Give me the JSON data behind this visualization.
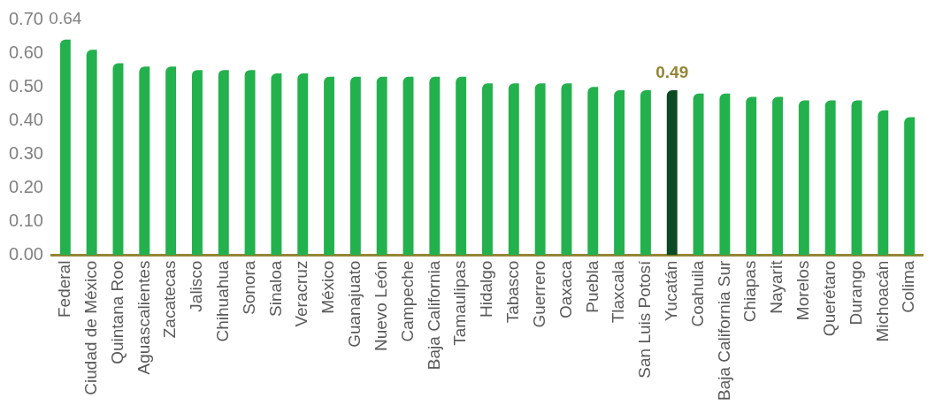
{
  "chart_data": {
    "type": "bar",
    "categories": [
      "Federal",
      "Ciudad de México",
      "Quintana Roo",
      "Aguascalientes",
      "Zacatecas",
      "Jalisco",
      "Chihuahua",
      "Sonora",
      "Sinaloa",
      "Veracruz",
      "México",
      "Guanajuato",
      "Nuevo León",
      "Campeche",
      "Baja California",
      "Tamaulipas",
      "Hidalgo",
      "Tabasco",
      "Guerrero",
      "Oaxaca",
      "Puebla",
      "Tlaxcala",
      "San Luis Potosí",
      "Yucatán",
      "Coahuila",
      "Baja California Sur",
      "Chiapas",
      "Nayarit",
      "Morelos",
      "Querétaro",
      "Durango",
      "Michoacán",
      "Colima"
    ],
    "values": [
      0.64,
      0.61,
      0.57,
      0.56,
      0.56,
      0.55,
      0.55,
      0.55,
      0.54,
      0.54,
      0.53,
      0.53,
      0.53,
      0.53,
      0.53,
      0.53,
      0.51,
      0.51,
      0.51,
      0.51,
      0.5,
      0.49,
      0.49,
      0.49,
      0.48,
      0.48,
      0.47,
      0.47,
      0.46,
      0.46,
      0.46,
      0.43,
      0.41
    ],
    "colors": [
      "#23b14d",
      "#23b14d",
      "#23b14d",
      "#23b14d",
      "#23b14d",
      "#23b14d",
      "#23b14d",
      "#23b14d",
      "#23b14d",
      "#23b14d",
      "#23b14d",
      "#23b14d",
      "#23b14d",
      "#23b14d",
      "#23b14d",
      "#23b14d",
      "#23b14d",
      "#23b14d",
      "#23b14d",
      "#23b14d",
      "#23b14d",
      "#23b14d",
      "#23b14d",
      "#0b4a22",
      "#23b14d",
      "#23b14d",
      "#23b14d",
      "#23b14d",
      "#23b14d",
      "#23b14d",
      "#23b14d",
      "#23b14d",
      "#23b14d"
    ],
    "value_labels": [
      "0.64",
      null,
      null,
      null,
      null,
      null,
      null,
      null,
      null,
      null,
      null,
      null,
      null,
      null,
      null,
      null,
      null,
      null,
      null,
      null,
      null,
      null,
      null,
      "0.49",
      null,
      null,
      null,
      null,
      null,
      null,
      null,
      null,
      null
    ],
    "ylim": [
      0,
      0.7
    ],
    "yticks": [
      {
        "value": 0,
        "label": "0.00"
      },
      {
        "value": 0.1,
        "label": "0.10"
      },
      {
        "value": 0.2,
        "label": "0.20"
      },
      {
        "value": 0.3,
        "label": "0.30"
      },
      {
        "value": 0.4,
        "label": "0.40"
      },
      {
        "value": 0.5,
        "label": "0.50"
      },
      {
        "value": 0.6,
        "label": "0.60"
      },
      {
        "value": 0.7,
        "label": "0.70"
      }
    ],
    "grid": false,
    "legend": false
  }
}
